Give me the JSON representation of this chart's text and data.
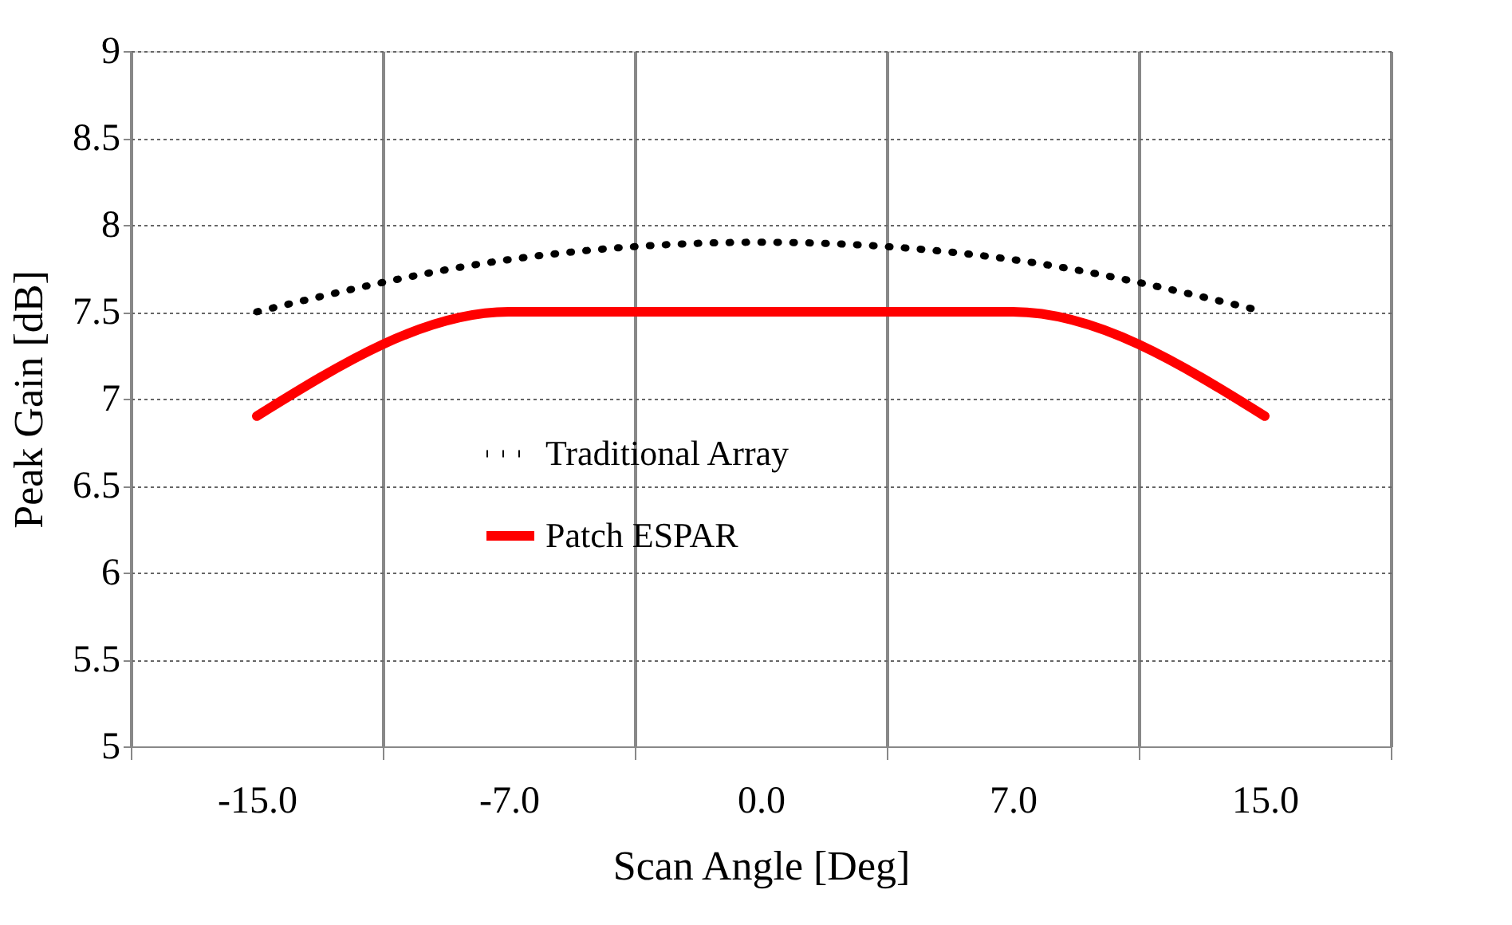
{
  "chart_data": {
    "type": "line",
    "xlabel": "Scan Angle [Deg]",
    "ylabel": "Peak Gain [dB]",
    "categories": [
      "-15.0",
      "-7.0",
      "0.0",
      "7.0",
      "15.0"
    ],
    "series": [
      {
        "name": "Traditional Array",
        "color": "#000000",
        "line_style": "dotted",
        "values": [
          7.5,
          7.8,
          7.9,
          7.8,
          7.5
        ]
      },
      {
        "name": "Patch ESPAR",
        "color": "#ff0000",
        "line_style": "solid",
        "values": [
          6.9,
          7.5,
          7.5,
          7.5,
          6.9
        ]
      }
    ],
    "ylim": [
      5,
      9
    ],
    "yticks": [
      5,
      5.5,
      6,
      6.5,
      7,
      7.5,
      8,
      8.5,
      9
    ],
    "grid": true,
    "legend": "center",
    "marker": "none"
  }
}
